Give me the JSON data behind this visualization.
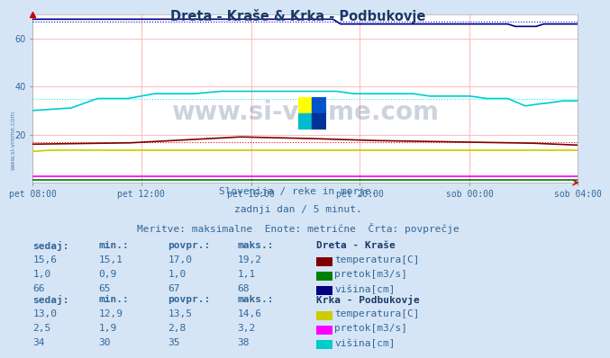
{
  "title": "Dreta - Kraše & Krka - Podbukovje",
  "bg_color": "#d5e5f5",
  "plot_bg_color": "#ffffff",
  "subtitle1": "Slovenija / reke in morje.",
  "subtitle2": "zadnji dan / 5 minut.",
  "subtitle3": "Meritve: maksimalne  Enote: metrične  Črta: povprečje",
  "xlabel_ticks": [
    "pet 08:00",
    "pet 12:00",
    "pet 16:00",
    "pet 20:00",
    "sob 00:00",
    "sob 04:00"
  ],
  "ylim": [
    0,
    70
  ],
  "yticks": [
    20,
    40,
    60
  ],
  "grid_color": "#ffb0b0",
  "n_points": 288,
  "dreta_temp_povpr": 17.0,
  "dreta_pretok_povpr": 1.0,
  "dreta_visina_povpr": 67,
  "krka_temp_povpr": 13.5,
  "krka_pretok_povpr": 2.8,
  "krka_visina_povpr": 35,
  "color_dreta_temp": "#800000",
  "color_dreta_pretok": "#008000",
  "color_dreta_visina": "#000080",
  "color_krka_temp": "#cccc00",
  "color_krka_pretok": "#ff00ff",
  "color_krka_visina": "#00cccc",
  "color_avg_dreta_temp": "#ff0000",
  "color_avg_dreta_pretok": "#00cc00",
  "color_avg_dreta_visina": "#0000ff",
  "color_avg_krka_temp": "#eeee00",
  "color_avg_krka_pretok": "#ff88ff",
  "color_avg_krka_visina": "#00ffff",
  "watermark": "www.si-vreme.com",
  "watermark_color": "#1a3a6a",
  "watermark_alpha": 0.22,
  "left_watermark": "www.si-vreme.com",
  "text_color": "#336699",
  "header_color": "#336699",
  "title_color": "#1a3a6a",
  "dreta_label": "Dreta - Kraše",
  "krka_label": "Krka - Podbukovje",
  "col1_header": "sedaj:",
  "col2_header": "min.:",
  "col3_header": "povpr.:",
  "col4_header": "maks.:",
  "dreta_temp_row": [
    "15,6",
    "15,1",
    "17,0",
    "19,2",
    "temperatura[C]"
  ],
  "dreta_pretok_row": [
    "1,0",
    "0,9",
    "1,0",
    "1,1",
    "pretok[m3/s]"
  ],
  "dreta_visina_row": [
    "66",
    "65",
    "67",
    "68",
    "višina[cm]"
  ],
  "krka_temp_row": [
    "13,0",
    "12,9",
    "13,5",
    "14,6",
    "temperatura[C]"
  ],
  "krka_pretok_row": [
    "2,5",
    "1,9",
    "2,8",
    "3,2",
    "pretok[m3/s]"
  ],
  "krka_visina_row": [
    "34",
    "30",
    "35",
    "38",
    "višina[cm]"
  ]
}
